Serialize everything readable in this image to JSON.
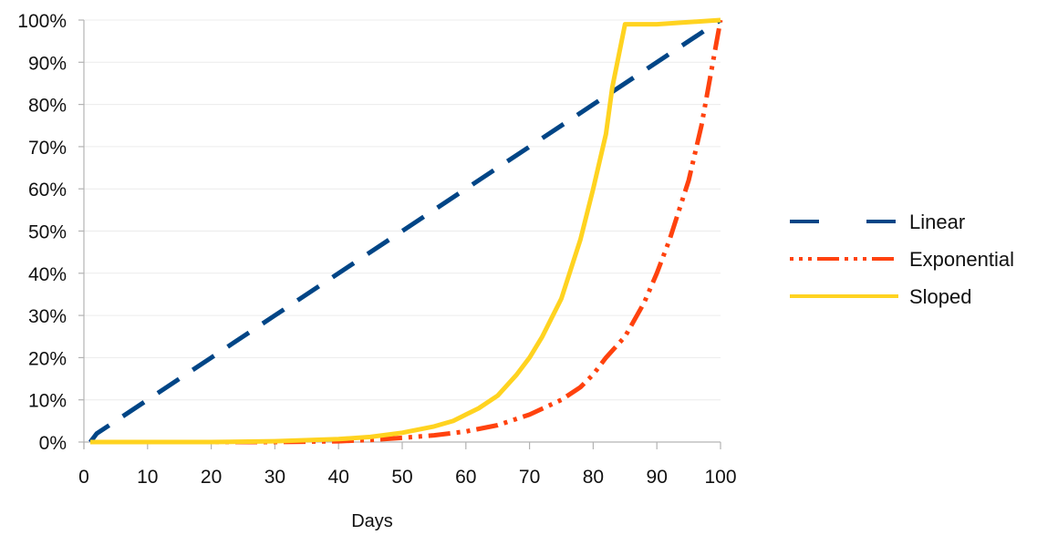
{
  "chart_data": {
    "type": "line",
    "title": "",
    "xlabel": "Days",
    "ylabel": "",
    "xlim": [
      0,
      100
    ],
    "ylim": [
      0,
      1
    ],
    "x_ticks": [
      0,
      10,
      20,
      30,
      40,
      50,
      60,
      70,
      80,
      90,
      100
    ],
    "x_tick_labels": [
      "0",
      "10",
      "20",
      "30",
      "40",
      "50",
      "60",
      "70",
      "80",
      "90",
      "100"
    ],
    "y_ticks": [
      0,
      0.1,
      0.2,
      0.3,
      0.4,
      0.5,
      0.6,
      0.7,
      0.8,
      0.9,
      1.0
    ],
    "y_tick_labels": [
      "0%",
      "10%",
      "20%",
      "30%",
      "40%",
      "50%",
      "60%",
      "70%",
      "80%",
      "90%",
      "100%"
    ],
    "grid": true,
    "legend_position": "right",
    "series": [
      {
        "name": "Linear",
        "color": "#004586",
        "dash": "long-dash",
        "x": [
          1,
          2,
          5,
          10,
          20,
          30,
          40,
          50,
          60,
          70,
          80,
          90,
          100
        ],
        "y": [
          0.0,
          0.02,
          0.05,
          0.1,
          0.2,
          0.3,
          0.4,
          0.5,
          0.6,
          0.7,
          0.8,
          0.9,
          1.0
        ]
      },
      {
        "name": "Exponential",
        "color": "#ff420e",
        "dash": "dash-dot-dot",
        "x": [
          1,
          10,
          20,
          30,
          40,
          45,
          50,
          55,
          60,
          65,
          70,
          75,
          78,
          80,
          82,
          85,
          88,
          90,
          92,
          95,
          97,
          100
        ],
        "y": [
          0.0,
          0.0,
          0.0,
          0.0,
          0.002,
          0.005,
          0.01,
          0.016,
          0.025,
          0.04,
          0.065,
          0.1,
          0.13,
          0.16,
          0.2,
          0.25,
          0.33,
          0.4,
          0.48,
          0.62,
          0.75,
          1.0
        ]
      },
      {
        "name": "Sloped",
        "color": "#ffd320",
        "dash": "solid",
        "x": [
          1,
          10,
          20,
          30,
          40,
          45,
          50,
          55,
          58,
          60,
          62,
          65,
          68,
          70,
          72,
          75,
          78,
          80,
          82,
          83,
          85,
          90,
          100
        ],
        "y": [
          0.0,
          0.0,
          0.0,
          0.002,
          0.007,
          0.012,
          0.022,
          0.037,
          0.05,
          0.065,
          0.08,
          0.11,
          0.16,
          0.2,
          0.25,
          0.34,
          0.48,
          0.6,
          0.73,
          0.84,
          0.99,
          0.99,
          1.0
        ]
      }
    ]
  }
}
